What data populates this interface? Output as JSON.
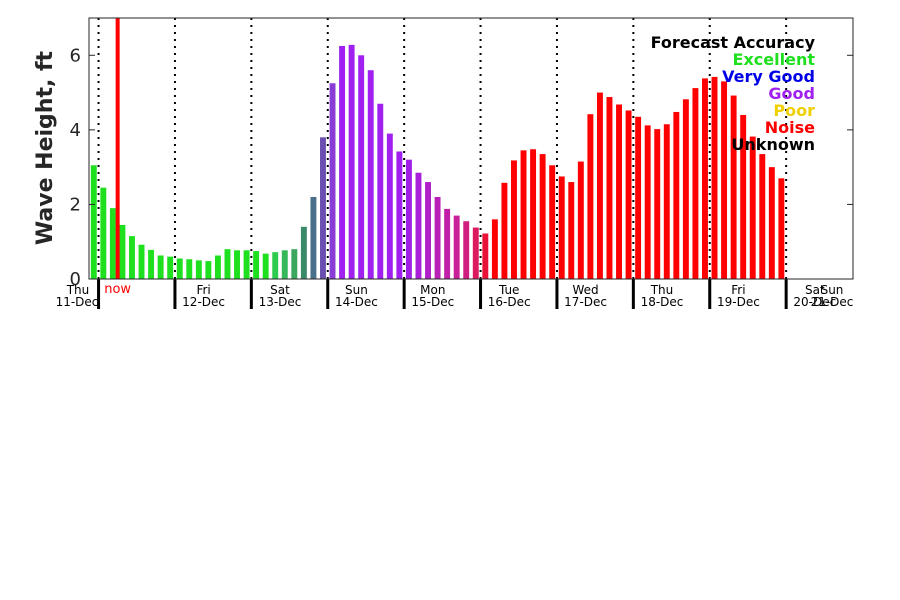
{
  "chart_data": {
    "type": "bar",
    "ylabel": "Wave Height, ft",
    "ylim": [
      0,
      7
    ],
    "yticks": [
      0,
      2,
      4,
      6
    ],
    "x_unit": "hours from Thu 11-Dec 00:00",
    "x_range": [
      0,
      240
    ],
    "bar_interval_hours": 3,
    "now_marker": {
      "label": "now",
      "x": 9,
      "color": "#ff0000"
    },
    "day_labels": [
      {
        "day": "Thu",
        "date": "11-Dec",
        "x": 0
      },
      {
        "day": "Fri",
        "date": "12-Dec",
        "x": 24
      },
      {
        "day": "Sat",
        "date": "13-Dec",
        "x": 48
      },
      {
        "day": "Sun",
        "date": "14-Dec",
        "x": 72
      },
      {
        "day": "Mon",
        "date": "15-Dec",
        "x": 96
      },
      {
        "day": "Tue",
        "date": "16-Dec",
        "x": 120
      },
      {
        "day": "Wed",
        "date": "17-Dec",
        "x": 144
      },
      {
        "day": "Thu",
        "date": "18-Dec",
        "x": 168
      },
      {
        "day": "Fri",
        "date": "19-Dec",
        "x": 192
      },
      {
        "day": "Sat",
        "date": "20-Dec",
        "x": 216
      },
      {
        "day": "Sun",
        "date": "21-Dec",
        "x": 240
      }
    ],
    "day_boundaries": [
      3,
      27,
      51,
      75,
      99,
      123,
      147,
      171,
      195,
      219
    ],
    "bars": [
      {
        "x": 1.5,
        "value": 3.05,
        "color": "#1ee01e"
      },
      {
        "x": 4.5,
        "value": 2.45,
        "color": "#1ee01e"
      },
      {
        "x": 7.5,
        "value": 1.9,
        "color": "#1ee01e"
      },
      {
        "x": 10.5,
        "value": 1.45,
        "color": "#1ee01e"
      },
      {
        "x": 13.5,
        "value": 1.15,
        "color": "#1ee01e"
      },
      {
        "x": 16.5,
        "value": 0.92,
        "color": "#1ee01e"
      },
      {
        "x": 19.5,
        "value": 0.78,
        "color": "#1ee01e"
      },
      {
        "x": 22.5,
        "value": 0.63,
        "color": "#1ee01e"
      },
      {
        "x": 25.5,
        "value": 0.6,
        "color": "#1ee01e"
      },
      {
        "x": 28.5,
        "value": 0.55,
        "color": "#1ee01e"
      },
      {
        "x": 31.5,
        "value": 0.53,
        "color": "#1ee01e"
      },
      {
        "x": 34.5,
        "value": 0.5,
        "color": "#1ee01e"
      },
      {
        "x": 37.5,
        "value": 0.48,
        "color": "#1ee01e"
      },
      {
        "x": 40.5,
        "value": 0.63,
        "color": "#1ee01e"
      },
      {
        "x": 43.5,
        "value": 0.8,
        "color": "#1ee01e"
      },
      {
        "x": 46.5,
        "value": 0.77,
        "color": "#1ee01e"
      },
      {
        "x": 49.5,
        "value": 0.77,
        "color": "#1ee01e"
      },
      {
        "x": 52.5,
        "value": 0.75,
        "color": "#1ee01e"
      },
      {
        "x": 55.5,
        "value": 0.68,
        "color": "#1ee01e"
      },
      {
        "x": 58.5,
        "value": 0.72,
        "color": "#2ecc4e"
      },
      {
        "x": 61.5,
        "value": 0.77,
        "color": "#35b85a"
      },
      {
        "x": 64.5,
        "value": 0.8,
        "color": "#3aa65e"
      },
      {
        "x": 67.5,
        "value": 1.4,
        "color": "#3a8a6a"
      },
      {
        "x": 70.5,
        "value": 2.2,
        "color": "#4a6f8a"
      },
      {
        "x": 73.5,
        "value": 3.8,
        "color": "#6a4fb0"
      },
      {
        "x": 76.5,
        "value": 5.25,
        "color": "#8a3cd6"
      },
      {
        "x": 79.5,
        "value": 6.25,
        "color": "#a020f0"
      },
      {
        "x": 82.5,
        "value": 6.28,
        "color": "#a020f0"
      },
      {
        "x": 85.5,
        "value": 6.0,
        "color": "#a020f0"
      },
      {
        "x": 88.5,
        "value": 5.6,
        "color": "#a020f0"
      },
      {
        "x": 91.5,
        "value": 4.7,
        "color": "#a020f0"
      },
      {
        "x": 94.5,
        "value": 3.9,
        "color": "#a020f0"
      },
      {
        "x": 97.5,
        "value": 3.42,
        "color": "#a020f0"
      },
      {
        "x": 100.5,
        "value": 3.2,
        "color": "#a020e8"
      },
      {
        "x": 103.5,
        "value": 2.85,
        "color": "#a820d8"
      },
      {
        "x": 106.5,
        "value": 2.6,
        "color": "#b020c8"
      },
      {
        "x": 109.5,
        "value": 2.2,
        "color": "#b820b8"
      },
      {
        "x": 112.5,
        "value": 1.88,
        "color": "#c020a8"
      },
      {
        "x": 115.5,
        "value": 1.7,
        "color": "#c82098"
      },
      {
        "x": 118.5,
        "value": 1.55,
        "color": "#d01e80"
      },
      {
        "x": 121.5,
        "value": 1.38,
        "color": "#dc1a60"
      },
      {
        "x": 124.5,
        "value": 1.22,
        "color": "#e81238"
      },
      {
        "x": 127.5,
        "value": 1.6,
        "color": "#ff0000"
      },
      {
        "x": 130.5,
        "value": 2.58,
        "color": "#ff0000"
      },
      {
        "x": 133.5,
        "value": 3.18,
        "color": "#ff0000"
      },
      {
        "x": 136.5,
        "value": 3.45,
        "color": "#ff0000"
      },
      {
        "x": 139.5,
        "value": 3.48,
        "color": "#ff0000"
      },
      {
        "x": 142.5,
        "value": 3.35,
        "color": "#ff0000"
      },
      {
        "x": 145.5,
        "value": 3.05,
        "color": "#ff0000"
      },
      {
        "x": 148.5,
        "value": 2.75,
        "color": "#ff0000"
      },
      {
        "x": 151.5,
        "value": 2.6,
        "color": "#ff0000"
      },
      {
        "x": 154.5,
        "value": 3.15,
        "color": "#ff0000"
      },
      {
        "x": 157.5,
        "value": 4.42,
        "color": "#ff0000"
      },
      {
        "x": 160.5,
        "value": 5.0,
        "color": "#ff0000"
      },
      {
        "x": 163.5,
        "value": 4.88,
        "color": "#ff0000"
      },
      {
        "x": 166.5,
        "value": 4.68,
        "color": "#ff0000"
      },
      {
        "x": 169.5,
        "value": 4.52,
        "color": "#ff0000"
      },
      {
        "x": 172.5,
        "value": 4.35,
        "color": "#ff0000"
      },
      {
        "x": 175.5,
        "value": 4.12,
        "color": "#ff0000"
      },
      {
        "x": 178.5,
        "value": 4.02,
        "color": "#ff0000"
      },
      {
        "x": 181.5,
        "value": 4.15,
        "color": "#ff0000"
      },
      {
        "x": 184.5,
        "value": 4.48,
        "color": "#ff0000"
      },
      {
        "x": 187.5,
        "value": 4.82,
        "color": "#ff0000"
      },
      {
        "x": 190.5,
        "value": 5.12,
        "color": "#ff0000"
      },
      {
        "x": 193.5,
        "value": 5.38,
        "color": "#ff0000"
      },
      {
        "x": 196.5,
        "value": 5.42,
        "color": "#ff0000"
      },
      {
        "x": 199.5,
        "value": 5.3,
        "color": "#ff0000"
      },
      {
        "x": 202.5,
        "value": 4.92,
        "color": "#ff0000"
      },
      {
        "x": 205.5,
        "value": 4.4,
        "color": "#ff0000"
      },
      {
        "x": 208.5,
        "value": 3.82,
        "color": "#ff0000"
      },
      {
        "x": 211.5,
        "value": 3.35,
        "color": "#ff0000"
      },
      {
        "x": 214.5,
        "value": 3.0,
        "color": "#ff0000"
      },
      {
        "x": 217.5,
        "value": 2.7,
        "color": "#ff0000"
      }
    ],
    "legend": {
      "title": "Forecast Accuracy",
      "title_color": "#000000",
      "placement": "top-right",
      "entries": [
        {
          "label": "Excellent",
          "color": "#1ee01e"
        },
        {
          "label": "Very Good",
          "color": "#0000e6"
        },
        {
          "label": "Good",
          "color": "#a020f0"
        },
        {
          "label": "Poor",
          "color": "#f0d000"
        },
        {
          "label": "Noise",
          "color": "#ff0000"
        },
        {
          "label": "Unknown",
          "color": "#000000"
        }
      ]
    }
  }
}
